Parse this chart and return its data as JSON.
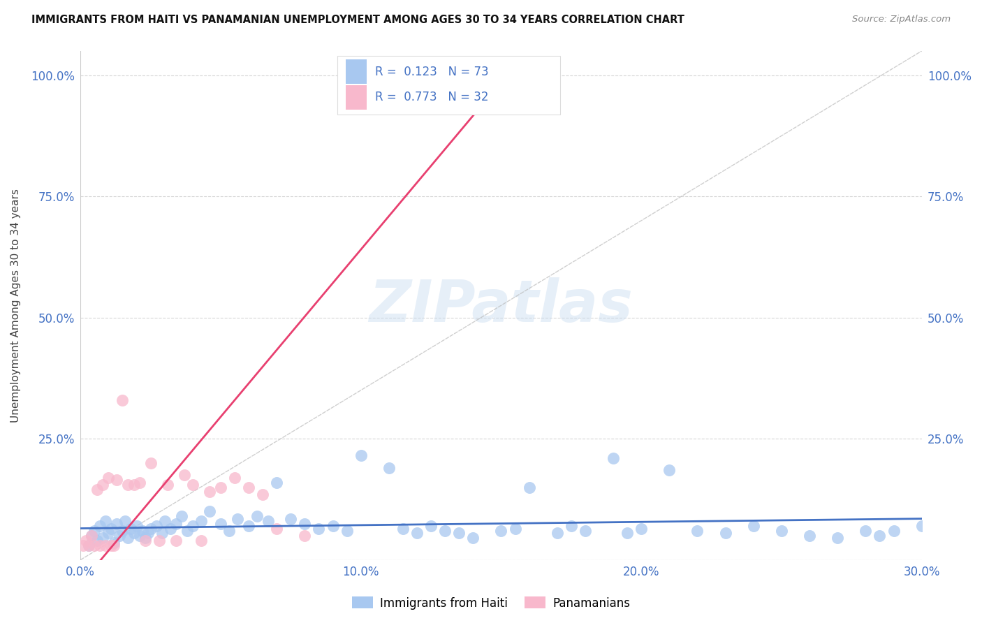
{
  "title": "IMMIGRANTS FROM HAITI VS PANAMANIAN UNEMPLOYMENT AMONG AGES 30 TO 34 YEARS CORRELATION CHART",
  "source": "Source: ZipAtlas.com",
  "ylabel": "Unemployment Among Ages 30 to 34 years",
  "xlim": [
    0.0,
    0.3
  ],
  "ylim": [
    0.0,
    1.05
  ],
  "xticks": [
    0.0,
    0.1,
    0.2,
    0.3
  ],
  "xticklabels": [
    "0.0%",
    "10.0%",
    "20.0%",
    "30.0%"
  ],
  "yticks": [
    0.0,
    0.25,
    0.5,
    0.75,
    1.0
  ],
  "yticklabels_left": [
    "",
    "25.0%",
    "50.0%",
    "75.0%",
    "100.0%"
  ],
  "yticklabels_right": [
    "",
    "25.0%",
    "50.0%",
    "75.0%",
    "100.0%"
  ],
  "blue_scatter_color": "#A8C8F0",
  "pink_scatter_color": "#F8B8CC",
  "blue_line_color": "#4472C4",
  "pink_line_color": "#E84070",
  "R_blue": "0.123",
  "N_blue": "73",
  "R_pink": "0.773",
  "N_pink": "32",
  "legend_label_blue": "Immigrants from Haiti",
  "legend_label_pink": "Panamanians",
  "watermark_text": "ZIPatlas",
  "bg_color": "#FFFFFF",
  "grid_color": "#CCCCCC",
  "tick_color": "#4472C4",
  "title_color": "#111111",
  "source_color": "#888888",
  "ylabel_color": "#444444",
  "blue_x": [
    0.003,
    0.004,
    0.005,
    0.006,
    0.007,
    0.008,
    0.009,
    0.01,
    0.011,
    0.012,
    0.013,
    0.014,
    0.015,
    0.016,
    0.017,
    0.018,
    0.019,
    0.02,
    0.021,
    0.022,
    0.023,
    0.024,
    0.025,
    0.027,
    0.029,
    0.03,
    0.032,
    0.034,
    0.036,
    0.038,
    0.04,
    0.043,
    0.046,
    0.05,
    0.053,
    0.056,
    0.06,
    0.063,
    0.067,
    0.07,
    0.075,
    0.08,
    0.085,
    0.09,
    0.095,
    0.1,
    0.11,
    0.115,
    0.12,
    0.125,
    0.13,
    0.135,
    0.14,
    0.15,
    0.155,
    0.16,
    0.17,
    0.175,
    0.18,
    0.19,
    0.195,
    0.2,
    0.21,
    0.22,
    0.23,
    0.24,
    0.25,
    0.26,
    0.27,
    0.28,
    0.285,
    0.29,
    0.3
  ],
  "blue_y": [
    0.03,
    0.05,
    0.06,
    0.04,
    0.07,
    0.045,
    0.08,
    0.055,
    0.065,
    0.035,
    0.075,
    0.05,
    0.06,
    0.08,
    0.045,
    0.065,
    0.055,
    0.07,
    0.05,
    0.06,
    0.045,
    0.055,
    0.065,
    0.07,
    0.055,
    0.08,
    0.065,
    0.075,
    0.09,
    0.06,
    0.07,
    0.08,
    0.1,
    0.075,
    0.06,
    0.085,
    0.07,
    0.09,
    0.08,
    0.16,
    0.085,
    0.075,
    0.065,
    0.07,
    0.06,
    0.215,
    0.19,
    0.065,
    0.055,
    0.07,
    0.06,
    0.055,
    0.045,
    0.06,
    0.065,
    0.15,
    0.055,
    0.07,
    0.06,
    0.21,
    0.055,
    0.065,
    0.185,
    0.06,
    0.055,
    0.07,
    0.06,
    0.05,
    0.045,
    0.06,
    0.05,
    0.06,
    0.07
  ],
  "pink_x": [
    0.001,
    0.002,
    0.003,
    0.004,
    0.005,
    0.006,
    0.007,
    0.008,
    0.009,
    0.01,
    0.011,
    0.012,
    0.013,
    0.015,
    0.017,
    0.019,
    0.021,
    0.023,
    0.025,
    0.028,
    0.031,
    0.034,
    0.037,
    0.04,
    0.043,
    0.046,
    0.05,
    0.055,
    0.06,
    0.065,
    0.07,
    0.08
  ],
  "pink_y": [
    0.03,
    0.04,
    0.03,
    0.05,
    0.03,
    0.145,
    0.03,
    0.155,
    0.03,
    0.17,
    0.03,
    0.03,
    0.165,
    0.33,
    0.155,
    0.155,
    0.16,
    0.04,
    0.2,
    0.04,
    0.155,
    0.04,
    0.175,
    0.155,
    0.04,
    0.14,
    0.15,
    0.17,
    0.15,
    0.135,
    0.065,
    0.05
  ]
}
